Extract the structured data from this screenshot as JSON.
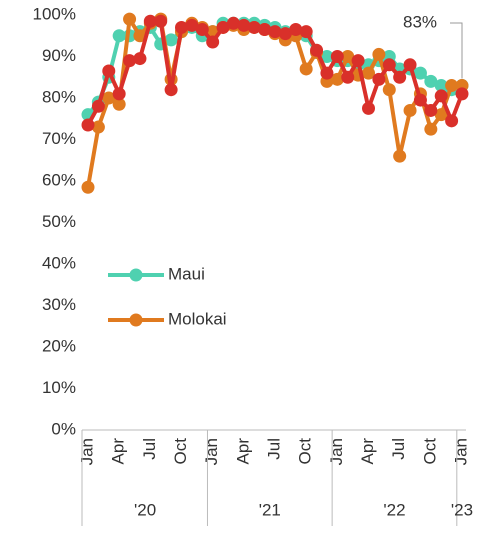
{
  "chart_data": {
    "type": "line",
    "categories": [
      "Jan",
      null,
      null,
      "Apr",
      null,
      null,
      "Jul",
      null,
      null,
      "Oct",
      null,
      null,
      "Jan",
      null,
      null,
      "Apr",
      null,
      null,
      "Jul",
      null,
      null,
      "Oct",
      null,
      null,
      "Jan",
      null,
      null,
      "Apr",
      null,
      null,
      "Jul",
      null,
      null,
      "Oct",
      null,
      null,
      "Jan"
    ],
    "year_groups": [
      "'20",
      "'21",
      "'22",
      "'23"
    ],
    "series": [
      {
        "name": "Maui",
        "color": "#4fd1b0",
        "values": [
          76,
          79,
          85,
          95,
          95,
          96,
          97,
          93,
          94,
          96,
          97,
          95,
          96,
          98,
          98,
          98,
          98,
          97.5,
          97,
          96,
          96,
          95,
          91,
          90,
          89,
          89,
          88,
          88,
          89,
          90,
          87,
          87,
          86,
          84,
          83,
          82,
          83
        ]
      },
      {
        "name": "Molokai",
        "color": "#e07a1f",
        "values": [
          58.5,
          73,
          80,
          78.5,
          99,
          95,
          98,
          99,
          84.5,
          96,
          98,
          97,
          96,
          97,
          97.5,
          96.5,
          97,
          96.5,
          95.5,
          94,
          95,
          87,
          91,
          84,
          84.5,
          90,
          85.5,
          86,
          90.5,
          82,
          66,
          77,
          81,
          72.5,
          76,
          83,
          83
        ]
      },
      {
        "color": "#d9302a",
        "values": [
          73.5,
          78,
          86.5,
          81,
          89,
          89.5,
          98.5,
          98.5,
          82,
          97,
          97.5,
          96.5,
          93.5,
          97,
          98,
          97.5,
          97,
          96.5,
          96,
          95.5,
          96.5,
          96,
          91.5,
          86,
          90,
          85,
          89,
          77.5,
          84.5,
          88,
          85,
          88,
          79.5,
          77,
          80.5,
          74.5,
          81
        ]
      }
    ],
    "annotation": "83%",
    "ylim": [
      0,
      100
    ],
    "yticks": [
      {
        "value": 0,
        "label": "0%"
      },
      {
        "value": 10,
        "label": "10%"
      },
      {
        "value": 20,
        "label": "20%"
      },
      {
        "value": 30,
        "label": "30%"
      },
      {
        "value": 40,
        "label": "40%"
      },
      {
        "value": 50,
        "label": "50%"
      },
      {
        "value": 60,
        "label": "60%"
      },
      {
        "value": 70,
        "label": "70%"
      },
      {
        "value": 80,
        "label": "80%"
      },
      {
        "value": 90,
        "label": "90%"
      },
      {
        "value": 100,
        "label": "100%"
      }
    ]
  }
}
